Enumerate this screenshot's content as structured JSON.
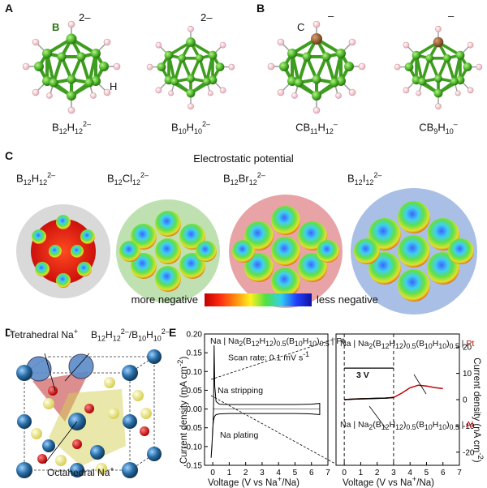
{
  "panels": {
    "A": "A",
    "B": "B",
    "C": "C",
    "D": "D",
    "E": "E"
  },
  "panel_a": {
    "atom_b": "B",
    "atom_h": "H",
    "charge1": "2–",
    "charge2": "2–",
    "mol1": {
      "base": "B",
      "n1": "12",
      "mid": "H",
      "n2": "12",
      "sup": "2–"
    },
    "mol2": {
      "base": "B",
      "n1": "10",
      "mid": "H",
      "n2": "10",
      "sup": "2–"
    }
  },
  "panel_b": {
    "atom_c": "C",
    "charge1": "–",
    "charge2": "–",
    "mol1": {
      "base": "CB",
      "n1": "11",
      "mid": "H",
      "n2": "12",
      "sup": "–"
    },
    "mol2": {
      "base": "CB",
      "n1": "9",
      "mid": "H",
      "n2": "10",
      "sup": "–"
    }
  },
  "panel_c": {
    "title": "Electrostatic potential",
    "spheres": [
      {
        "base": "B",
        "n1": "12",
        "mid": "H",
        "n2": "12",
        "sup": "2–",
        "bg": "#d9d9d9"
      },
      {
        "base": "B",
        "n1": "12",
        "mid": "Cl",
        "n2": "12",
        "sup": "2–",
        "bg": "#bfe0b0"
      },
      {
        "base": "B",
        "n1": "12",
        "mid": "Br",
        "n2": "12",
        "sup": "2–",
        "bg": "#e7a3a5"
      },
      {
        "base": "B",
        "n1": "12",
        "mid": "I",
        "n2": "12",
        "sup": "2–",
        "bg": "#a9bfe6"
      }
    ],
    "scale_left": "more negative",
    "scale_right": "less negative"
  },
  "panel_d": {
    "tetra_label": "Tetrahedral Na",
    "tetra_sup": "+",
    "anion_label": "B12H12^2-/B10H10^2-",
    "anion_parts": {
      "b1": "B",
      "n1": "12",
      "h1": "H",
      "n2": "12",
      "s1": "2–",
      "sep": "/B",
      "n3": "10",
      "h2": "H",
      "n4": "10",
      "s2": "2–"
    },
    "octa_label": "Octahedral Na",
    "octa_sup": "+"
  },
  "panel_e": {
    "left_annotation_title": "Na | Na2(B12H12)0.5(B10H10)0.5 | Pt",
    "scan_rate": "Scan rate: 0.1 mV s",
    "scan_sup": "-1",
    "stripping": "Na stripping",
    "plating": "Na plating",
    "left_ylabel": "Current density (mA cm",
    "left_xlabel": "Voltage (V vs Na",
    "right_ylabel": "Current density (nA cm",
    "right_xlabel": "Voltage (V vs Na",
    "pt_label": "Pt",
    "al_label": "Al",
    "cell_prefix": "Na | Na",
    "three_v": "3 V",
    "right_annotation_pt": "Na | Na2(B12H12)0.5(B10H10)0.5 | Pt",
    "right_annotation_al": "Na | Na2(B12H12)0.5(B10H10)0.5 | Al"
  },
  "chart_data": [
    {
      "type": "line",
      "title": "",
      "xlabel": "Voltage (V vs Na+/Na)",
      "ylabel": "Current density (mA cm-2)",
      "xlim": [
        -0.5,
        7
      ],
      "ylim": [
        -0.15,
        0.2
      ],
      "xticks": [
        "0",
        "1",
        "2",
        "3",
        "4",
        "5",
        "6",
        "7"
      ],
      "yticks": [
        "-0.15",
        "-0.10",
        "-0.05",
        "0.00",
        "0.05",
        "0.10",
        "0.15",
        "0.20"
      ],
      "series": [
        {
          "x": [
            -0.1,
            0.0,
            0.05,
            0.08,
            0.12,
            0.2,
            0.4,
            1,
            2,
            3,
            4,
            5,
            6,
            6.5,
            6.5,
            6,
            5,
            4,
            3,
            2,
            1,
            0.4,
            0.2,
            0.1,
            0.05,
            0.0,
            -0.05,
            -0.1
          ],
          "y": [
            -0.13,
            -0.06,
            0.0,
            0.17,
            0.06,
            0.02,
            0.013,
            0.012,
            0.012,
            0.012,
            0.012,
            0.012,
            0.013,
            0.015,
            -0.015,
            -0.013,
            -0.012,
            -0.012,
            -0.012,
            -0.012,
            -0.012,
            -0.013,
            -0.015,
            -0.02,
            -0.03,
            -0.05,
            -0.1,
            -0.13
          ]
        }
      ]
    },
    {
      "type": "line",
      "title": "",
      "xlabel": "Voltage (V vs Na+/Na)",
      "ylabel": "Current density (nA cm-2)",
      "xlim": [
        -0.5,
        7
      ],
      "ylim": [
        -25,
        25
      ],
      "xticks": [
        "0",
        "1",
        "2",
        "3",
        "4",
        "5",
        "6",
        "7"
      ],
      "yticks": [
        "-20",
        "-10",
        "0",
        "10",
        "20"
      ],
      "series": [
        {
          "name": "Pt",
          "x": [
            0,
            0.5,
            1,
            1.5,
            2,
            2.5,
            3,
            3.5,
            4,
            4.5,
            5,
            5.5,
            6
          ],
          "y": [
            0,
            0.2,
            0.3,
            0.4,
            0.5,
            0.6,
            0.8,
            2.5,
            4.5,
            5.5,
            5.2,
            4.6,
            4.2
          ]
        },
        {
          "name": "Al",
          "x": [
            0,
            0.5,
            1,
            1.5,
            2,
            2.5,
            3
          ],
          "y": [
            0,
            0.2,
            0.3,
            0.4,
            0.5,
            0.6,
            0.8
          ]
        }
      ],
      "annotations": [
        "3 V"
      ]
    }
  ]
}
